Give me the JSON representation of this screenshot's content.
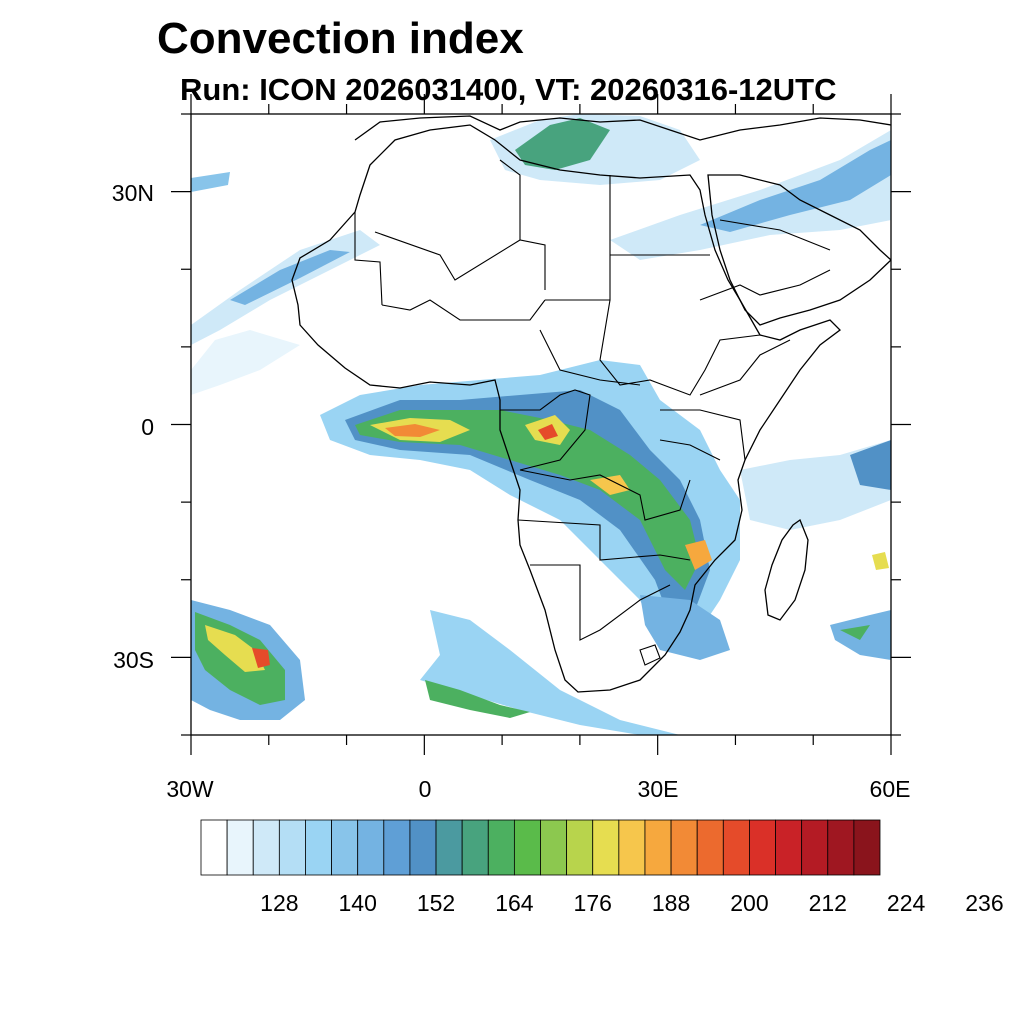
{
  "title": "Convection index",
  "subtitle": "Run: ICON 2026031400,  VT: 20260316-12UTC",
  "map": {
    "lon_range": [
      -30,
      60
    ],
    "lat_range": [
      -40,
      40
    ],
    "lat_ticks": [
      {
        "value": 30,
        "label": "30N"
      },
      {
        "value": 0,
        "label": "0"
      },
      {
        "value": -30,
        "label": "30S"
      }
    ],
    "lon_ticks": [
      {
        "value": -30,
        "label": "30W"
      },
      {
        "value": 0,
        "label": "0"
      },
      {
        "value": 30,
        "label": "30E"
      },
      {
        "value": 60,
        "label": "60E"
      }
    ],
    "region": "Africa"
  },
  "colorbar": {
    "colors": [
      "#ffffff",
      "#e8f5fc",
      "#cfe9f8",
      "#b4def5",
      "#9ad4f3",
      "#88c4ea",
      "#74b3e2",
      "#5f9fd6",
      "#5191c6",
      "#4b9aa0",
      "#48a37e",
      "#4cb060",
      "#5abb4a",
      "#8cc84f",
      "#b8d44c",
      "#e6dd50",
      "#f6c64c",
      "#f6a83e",
      "#f28a36",
      "#ec6a2e",
      "#e54b2a",
      "#da3028",
      "#c92227",
      "#b41b24",
      "#9f1721",
      "#8a141c"
    ],
    "labels": [
      "128",
      "140",
      "152",
      "164",
      "176",
      "188",
      "200",
      "212",
      "224",
      "236"
    ],
    "label_values": [
      128,
      140,
      152,
      164,
      176,
      188,
      200,
      212,
      224,
      236
    ],
    "min": 116,
    "step": 4
  }
}
